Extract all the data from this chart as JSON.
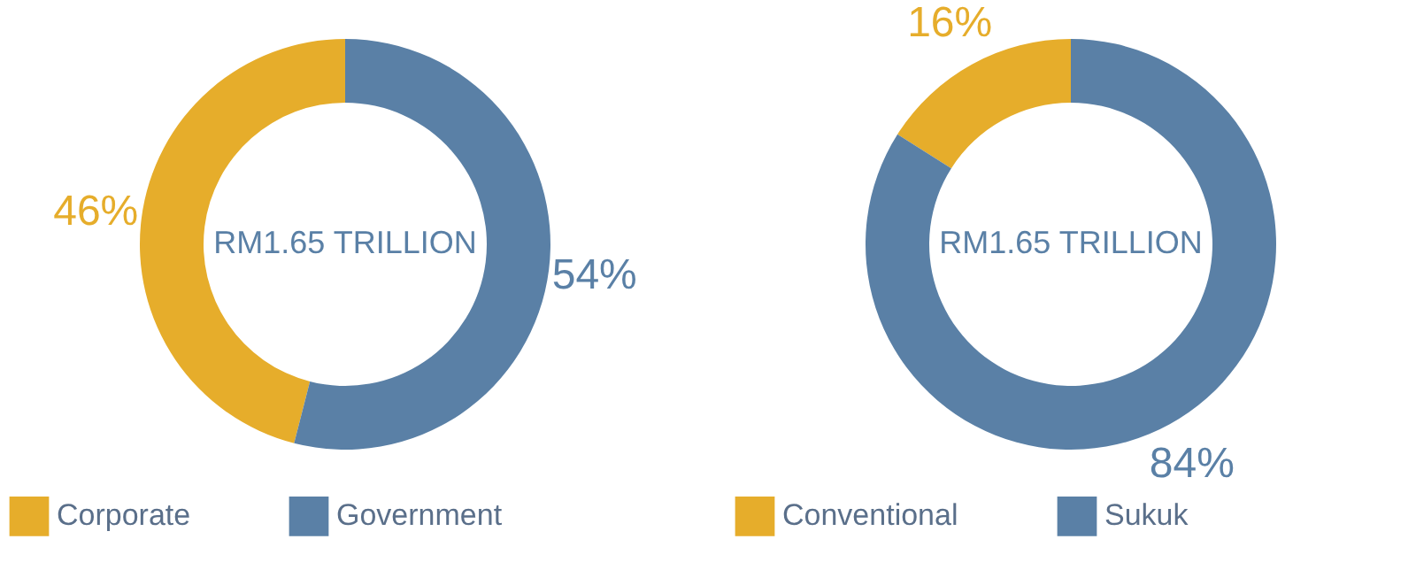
{
  "chart_data": [
    {
      "type": "donut",
      "categories": [
        "Corporate",
        "Government"
      ],
      "values": [
        46,
        54
      ],
      "colors": [
        "#e6ad2b",
        "#5a80a6"
      ],
      "value_labels": [
        "46%",
        "54%"
      ],
      "annotations": [
        "RM1.65 TRILLION"
      ],
      "legend": "bottom"
    },
    {
      "type": "donut",
      "categories": [
        "Conventional",
        "Sukuk"
      ],
      "values": [
        16,
        84
      ],
      "colors": [
        "#e6ad2b",
        "#5a80a6"
      ],
      "value_labels": [
        "16%",
        "84%"
      ],
      "annotations": [
        "RM1.65 TRILLION"
      ],
      "legend": "bottom"
    }
  ]
}
